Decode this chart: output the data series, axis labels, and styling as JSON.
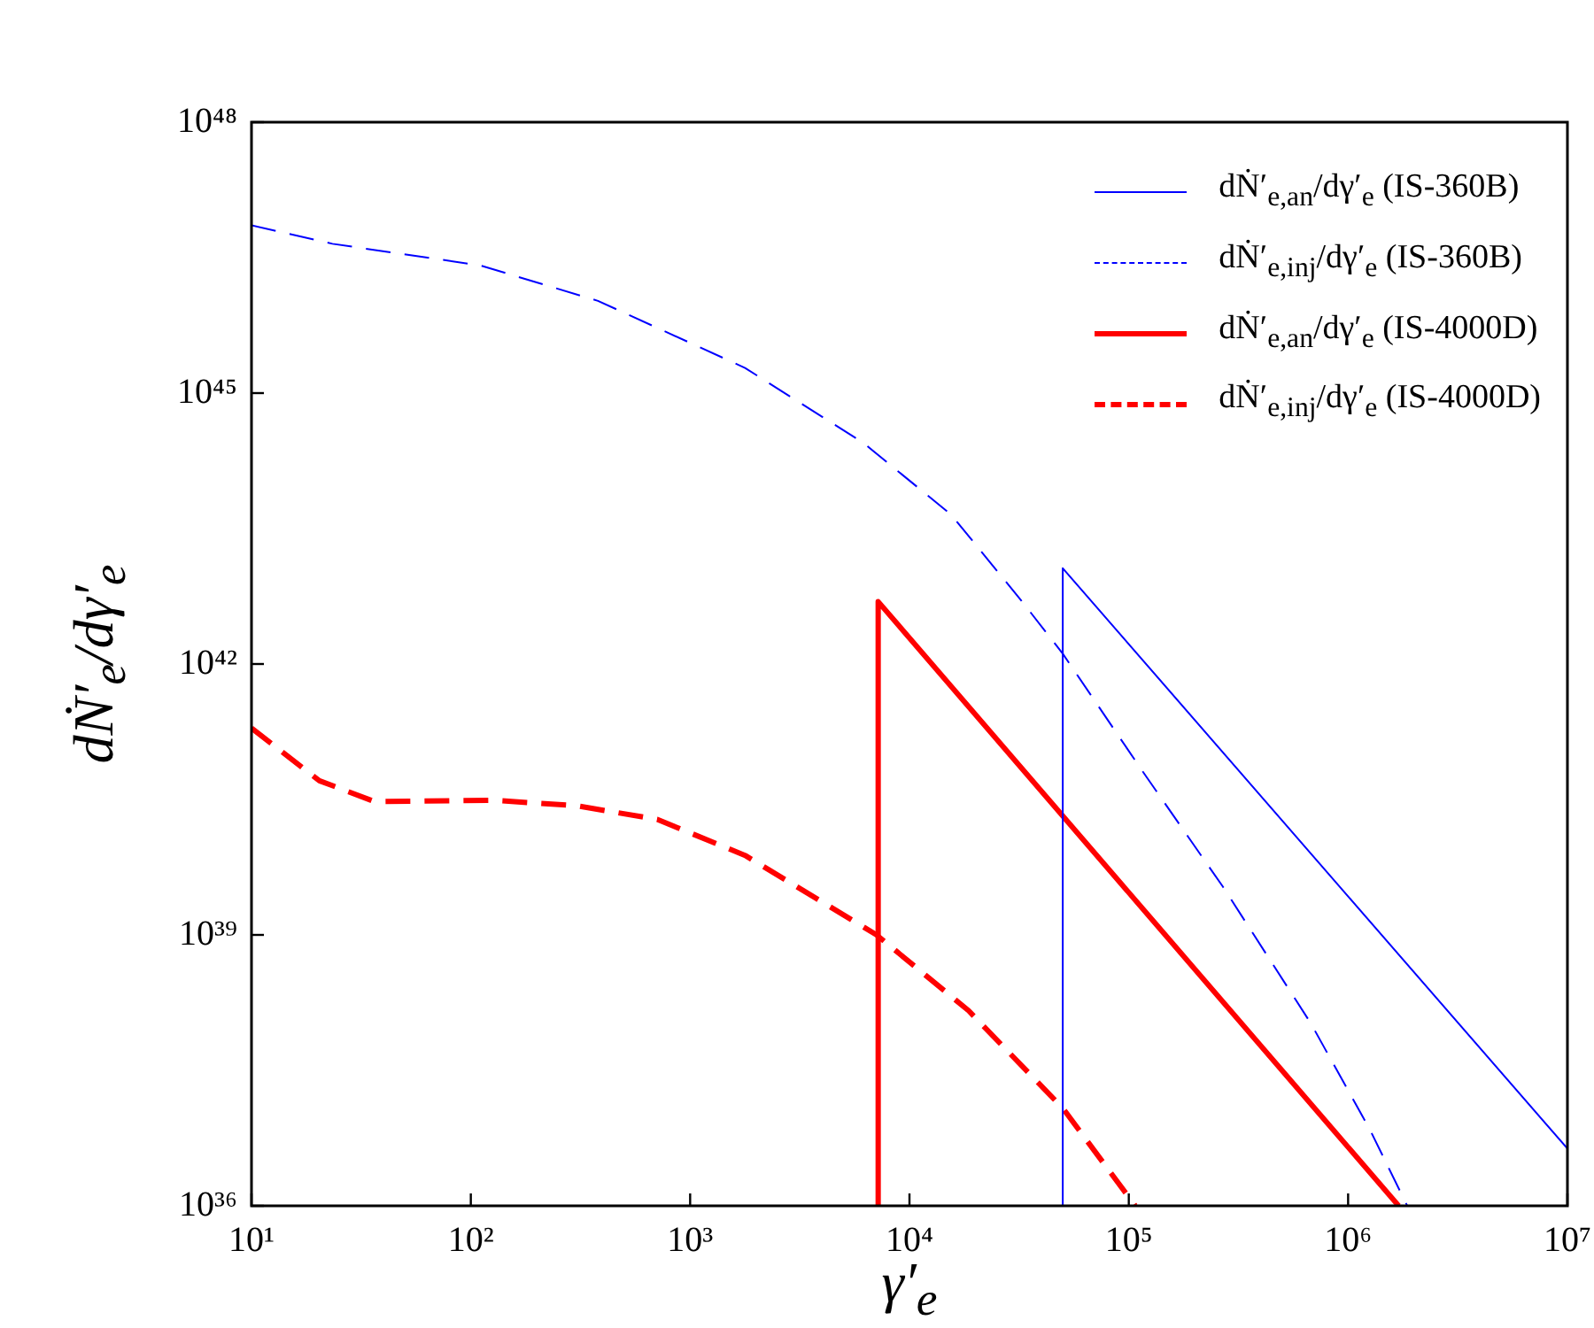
{
  "chart_data": {
    "type": "line",
    "xlabel": "γ′$_{e}$",
    "ylabel": "dṄ′$_{e}$/dγ′$_{e}$",
    "log": "xy",
    "grid": false,
    "legend": "top right",
    "marker": "none",
    "xlim": [
      10,
      10000000
    ],
    "ylim": [
      1e+36,
      1e+48
    ],
    "xticks": [
      {
        "value": 10,
        "label": "10¹"
      },
      {
        "value": 100,
        "label": "10²"
      },
      {
        "value": 1000,
        "label": "10³"
      },
      {
        "value": 10000,
        "label": "10⁴"
      },
      {
        "value": 100000,
        "label": "10⁵"
      },
      {
        "value": 1000000,
        "label": "10⁶"
      },
      {
        "value": 10000000,
        "label": "10⁷"
      }
    ],
    "yticks": [
      {
        "value": 1e+36,
        "label": "10³⁶"
      },
      {
        "value": 1e+39,
        "label": "10³⁹"
      },
      {
        "value": 1e+42,
        "label": "10⁴²"
      },
      {
        "value": 1e+45,
        "label": "10⁴⁵"
      },
      {
        "value": 1e+48,
        "label": "10⁴⁸"
      }
    ],
    "series": [
      {
        "name": "dṄ′$_{e,an}$/dγ′$_{e}$ (IS-360B)",
        "color": "#0000ff",
        "line_style": "solid",
        "x": [
          50000,
          50000,
          10000000
        ],
        "values": [
          1e+36,
          1.15e+43,
          4.3e+36
        ]
      },
      {
        "name": "dṄ′$_{e,inj}$/dγ′$_{e}$ (IS-360B)",
        "color": "#0000ff",
        "line_style": "dashed",
        "x": [
          10,
          23.4,
          110,
          380,
          1780,
          6170,
          15500,
          33100,
          50000,
          115000,
          269000,
          676000,
          1260000,
          1860000
        ],
        "values": [
          7.2e+46,
          4.5e+46,
          2.6e+46,
          1.05e+46,
          1.9e+45,
          2.8e+44,
          4.5e+43,
          4.7e+42,
          1.3e+42,
          6.6e+40,
          3.4e+39,
          1.05e+38,
          6.9e+36,
          1e+36
        ]
      },
      {
        "name": "dṄ′$_{e,an}$/dγ′$_{e}$ (IS-4000D)",
        "color": "#ff0000",
        "line_style": "solid",
        "x": [
          7200,
          7200,
          1700000
        ],
        "values": [
          1e+36,
          4.9e+42,
          1e+36
        ]
      },
      {
        "name": "dṄ′$_{e,inj}$/dγ′$_{e}$ (IS-4000D)",
        "color": "#ff0000",
        "line_style": "dashed",
        "x": [
          10,
          20.4,
          36.3,
          126,
          302,
          708,
          1780,
          7080,
          18600,
          50100,
          107000
        ],
        "values": [
          1.95e+41,
          5.1e+40,
          3e+40,
          3.1e+40,
          2.7e+40,
          1.9e+40,
          7.6e+39,
          1e+39,
          1.45e+38,
          1.2e+37,
          1e+36
        ]
      }
    ]
  }
}
